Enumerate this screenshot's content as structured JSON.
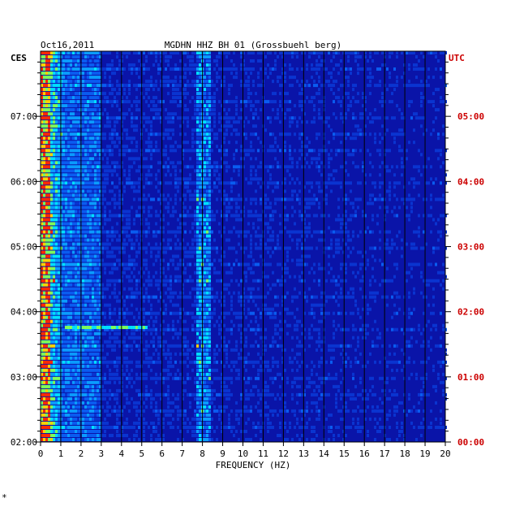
{
  "chart_data": {
    "type": "heatmap",
    "date": "Oct16,2011",
    "station_title": "MGDHN HHZ BH 01 (Grossbuehl berg)",
    "left_tz": "CES",
    "right_tz": "UTC",
    "xlabel": "FREQUENCY (HZ)",
    "xlim": [
      0,
      20
    ],
    "x_ticks": [
      "0",
      "1",
      "2",
      "3",
      "4",
      "5",
      "6",
      "7",
      "8",
      "9",
      "10",
      "11",
      "12",
      "13",
      "14",
      "15",
      "16",
      "17",
      "18",
      "19",
      "20"
    ],
    "left_time_ticks": [
      "07:00",
      "06:00",
      "05:00",
      "04:00",
      "03:00",
      "02:00"
    ],
    "right_time_ticks": [
      "05:00",
      "04:00",
      "03:00",
      "02:00",
      "01:00",
      "00:00"
    ],
    "time_span_hours": 6,
    "colors": {
      "background": "#0a14a8",
      "grid": "#000000",
      "frame": "#000000",
      "left_labels": "#000000",
      "right_labels": "#cc0000"
    },
    "footnote": "*"
  }
}
